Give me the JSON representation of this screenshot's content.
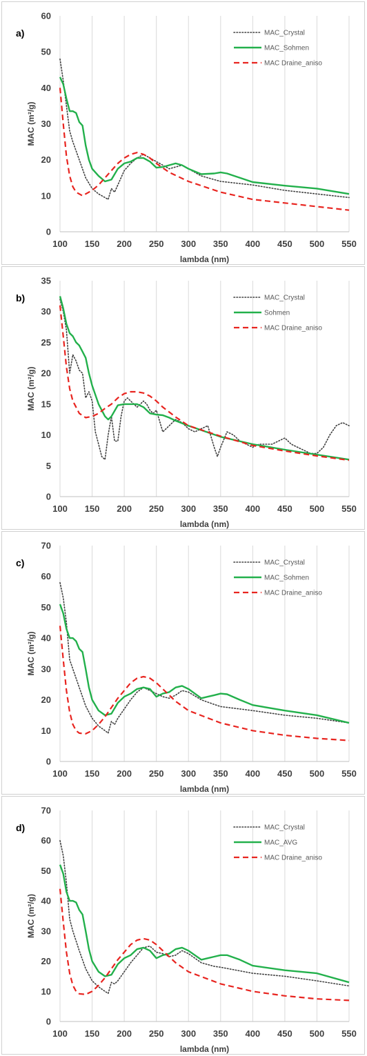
{
  "colors": {
    "crystal": "#3f3f3f",
    "green": "#22b04b",
    "red": "#e8241f",
    "grid": "#d9d9d9"
  },
  "chart_data": [
    {
      "type": "line",
      "panel_label": "a)",
      "xlabel": "lambda (nm)",
      "ylabel": "MAC (m²/g)",
      "xlim": [
        100,
        550
      ],
      "ylim": [
        0,
        60
      ],
      "xticks": [
        100,
        150,
        200,
        250,
        300,
        350,
        400,
        450,
        500,
        550
      ],
      "yticks": [
        0,
        10,
        20,
        30,
        40,
        50,
        60
      ],
      "grid": "vertical",
      "legend_position": "top-right",
      "series": [
        {
          "name": "MAC_Crystal",
          "style": "dotted",
          "x": [
            100,
            105,
            110,
            115,
            120,
            130,
            140,
            150,
            160,
            170,
            175,
            180,
            185,
            190,
            200,
            210,
            220,
            230,
            240,
            250,
            260,
            270,
            280,
            290,
            300,
            320,
            350,
            400,
            450,
            500,
            550
          ],
          "y": [
            48,
            42,
            35,
            28,
            25,
            20,
            15,
            12,
            10.5,
            9.5,
            9.0,
            12,
            11,
            13,
            17,
            19,
            20.5,
            21.5,
            20.5,
            19.5,
            18.5,
            17.5,
            18,
            18.5,
            17.5,
            15.5,
            14,
            13,
            11.5,
            10.5,
            9.5
          ]
        },
        {
          "name": "MAC_Sohmen",
          "style": "solid",
          "x": [
            100,
            105,
            110,
            115,
            120,
            125,
            130,
            135,
            140,
            145,
            150,
            160,
            170,
            180,
            190,
            200,
            210,
            220,
            230,
            240,
            250,
            260,
            270,
            280,
            290,
            300,
            320,
            340,
            350,
            360,
            380,
            400,
            450,
            500,
            550
          ],
          "y": [
            43,
            41,
            37,
            33.5,
            33.5,
            33,
            30.5,
            29.5,
            24,
            20,
            17.5,
            15.5,
            14.0,
            14.5,
            17.5,
            19,
            19.5,
            20.5,
            20.5,
            19.5,
            17.8,
            18,
            18.5,
            19,
            18.5,
            17.5,
            16,
            16.2,
            16.5,
            16.2,
            15,
            13.8,
            12.8,
            12,
            10.5
          ]
        },
        {
          "name": "MAC Draine_aniso",
          "style": "dashed",
          "x": [
            100,
            105,
            110,
            115,
            120,
            125,
            130,
            135,
            140,
            150,
            160,
            170,
            180,
            190,
            200,
            210,
            220,
            230,
            240,
            250,
            270,
            300,
            350,
            400,
            450,
            500,
            550
          ],
          "y": [
            40,
            30,
            21,
            15.5,
            12.5,
            11,
            10.5,
            10,
            10.5,
            11.5,
            13,
            15,
            17,
            19,
            20.5,
            21.5,
            22,
            21.5,
            20.5,
            19,
            16.5,
            14,
            11,
            9,
            8,
            7,
            6
          ]
        }
      ]
    },
    {
      "type": "line",
      "panel_label": "b)",
      "xlabel": "lambda (nm)",
      "ylabel": "MAC (m²/g)",
      "xlim": [
        100,
        550
      ],
      "ylim": [
        0,
        35
      ],
      "xticks": [
        100,
        150,
        200,
        250,
        300,
        350,
        400,
        450,
        500,
        550
      ],
      "yticks": [
        0,
        5,
        10,
        15,
        20,
        25,
        30,
        35
      ],
      "grid": "vertical",
      "legend_position": "top-right",
      "series": [
        {
          "name": "MAC_Crystal",
          "style": "dotted",
          "x": [
            100,
            105,
            110,
            115,
            120,
            125,
            130,
            135,
            140,
            145,
            150,
            155,
            160,
            165,
            170,
            175,
            180,
            185,
            190,
            195,
            200,
            205,
            210,
            215,
            220,
            225,
            230,
            235,
            240,
            245,
            250,
            260,
            270,
            280,
            290,
            300,
            310,
            320,
            330,
            340,
            345,
            350,
            360,
            370,
            380,
            390,
            400,
            410,
            420,
            430,
            440,
            450,
            460,
            470,
            480,
            490,
            500,
            510,
            520,
            530,
            540,
            550
          ],
          "y": [
            32,
            30,
            27,
            20,
            23,
            22,
            20.5,
            20,
            16,
            17,
            15.5,
            10.5,
            8.5,
            6.5,
            6,
            10,
            13,
            9,
            9,
            13,
            15.5,
            16,
            15.5,
            15,
            14.5,
            15,
            15.5,
            15,
            14,
            13.5,
            14,
            10.5,
            11.5,
            12.5,
            12,
            11,
            10.5,
            11,
            11.5,
            8,
            6.5,
            8,
            10.5,
            10,
            9,
            8.5,
            8,
            8.5,
            8.5,
            8.5,
            9,
            9.5,
            8.5,
            8,
            7.5,
            7,
            7,
            8,
            10,
            11.5,
            12,
            11.5
          ]
        },
        {
          "name": "Sohmen",
          "style": "solid",
          "x": [
            100,
            105,
            110,
            115,
            120,
            125,
            130,
            135,
            140,
            145,
            150,
            160,
            170,
            175,
            180,
            190,
            200,
            210,
            220,
            230,
            240,
            250,
            260,
            270,
            280,
            300,
            350,
            400,
            450,
            500,
            550
          ],
          "y": [
            32.5,
            30.5,
            28,
            26.5,
            26,
            25,
            24.5,
            23.5,
            22.5,
            20,
            18,
            15,
            13,
            12.5,
            13,
            14.8,
            15,
            15,
            15,
            14.5,
            13.5,
            13.3,
            13.2,
            12.8,
            12.3,
            11.5,
            9.7,
            8.5,
            7.6,
            6.8,
            6
          ]
        },
        {
          "name": "MAC Draine_aniso",
          "style": "dashed",
          "x": [
            100,
            105,
            110,
            115,
            120,
            125,
            130,
            140,
            150,
            160,
            170,
            180,
            190,
            200,
            210,
            220,
            230,
            240,
            250,
            260,
            280,
            300,
            350,
            400,
            450,
            500,
            550
          ],
          "y": [
            31,
            26,
            21,
            17.5,
            15.5,
            14.5,
            13.5,
            12.8,
            13,
            13.5,
            14.3,
            15,
            16,
            16.7,
            17,
            17,
            16.8,
            16.3,
            15.5,
            14.5,
            12.9,
            11.5,
            9.8,
            8.3,
            7.4,
            6.6,
            5.9
          ]
        }
      ]
    },
    {
      "type": "line",
      "panel_label": "c)",
      "xlabel": "lambda (nm)",
      "ylabel": "MAC (m²/g)",
      "xlim": [
        100,
        550
      ],
      "ylim": [
        0,
        70
      ],
      "xticks": [
        100,
        150,
        200,
        250,
        300,
        350,
        400,
        450,
        500,
        550
      ],
      "yticks": [
        0,
        10,
        20,
        30,
        40,
        50,
        60,
        70
      ],
      "grid": "vertical",
      "legend_position": "top-right",
      "series": [
        {
          "name": "MAC_Crystal",
          "style": "dotted",
          "x": [
            100,
            105,
            110,
            115,
            120,
            130,
            140,
            150,
            160,
            170,
            175,
            180,
            185,
            190,
            200,
            210,
            220,
            230,
            240,
            250,
            260,
            270,
            280,
            290,
            300,
            320,
            340,
            350,
            400,
            450,
            500,
            550
          ],
          "y": [
            58,
            53,
            45,
            33,
            30,
            24,
            18,
            14,
            11.5,
            10,
            9.2,
            13,
            12,
            14,
            17,
            20,
            22.5,
            24,
            23,
            22,
            21,
            20.5,
            21.5,
            23,
            22.5,
            20,
            18.5,
            17.8,
            16.5,
            15,
            14,
            12.5
          ]
        },
        {
          "name": "MAC_Sohmen",
          "style": "solid",
          "x": [
            100,
            105,
            110,
            115,
            120,
            125,
            130,
            135,
            140,
            145,
            150,
            160,
            170,
            180,
            190,
            200,
            210,
            220,
            230,
            240,
            250,
            260,
            270,
            280,
            290,
            300,
            320,
            330,
            340,
            350,
            360,
            380,
            400,
            450,
            500,
            550
          ],
          "y": [
            51,
            48,
            43,
            40,
            40,
            39,
            36.5,
            35.5,
            30,
            24,
            20,
            16.5,
            15,
            15.5,
            19,
            21,
            22,
            23.5,
            24,
            23.5,
            21,
            22,
            22.5,
            24,
            24.5,
            23.5,
            20.5,
            21,
            21.5,
            22,
            21.8,
            20,
            18.3,
            16.5,
            15,
            12.5
          ]
        },
        {
          "name": "MAC Draine_aniso",
          "style": "dashed",
          "x": [
            100,
            105,
            110,
            115,
            120,
            125,
            130,
            140,
            150,
            160,
            170,
            180,
            190,
            200,
            210,
            220,
            230,
            240,
            250,
            260,
            280,
            300,
            350,
            400,
            450,
            500,
            550
          ],
          "y": [
            44,
            33,
            23,
            16,
            12,
            10,
            9.2,
            9,
            10,
            12,
            14.5,
            17.5,
            20.5,
            23,
            25.5,
            27,
            27.5,
            27,
            25.5,
            23.5,
            19.5,
            16.5,
            12.5,
            10,
            8.5,
            7.5,
            6.8
          ]
        }
      ]
    },
    {
      "type": "line",
      "panel_label": "d)",
      "xlabel": "lambda (nm)",
      "ylabel": "MAC (m²/g)",
      "xlim": [
        100,
        550
      ],
      "ylim": [
        0,
        70
      ],
      "xticks": [
        100,
        150,
        200,
        250,
        300,
        350,
        400,
        450,
        500,
        550
      ],
      "yticks": [
        0,
        10,
        20,
        30,
        40,
        50,
        60,
        70
      ],
      "grid": "vertical",
      "legend_position": "top-right",
      "series": [
        {
          "name": "MAC_Crystal",
          "style": "dotted",
          "x": [
            100,
            105,
            110,
            115,
            120,
            130,
            140,
            150,
            160,
            170,
            175,
            180,
            185,
            190,
            200,
            210,
            220,
            230,
            240,
            250,
            260,
            270,
            280,
            290,
            300,
            320,
            340,
            350,
            400,
            450,
            500,
            550
          ],
          "y": [
            60,
            55,
            46,
            34,
            30,
            23.5,
            17.5,
            13.5,
            11.5,
            10,
            9.3,
            13,
            12.5,
            13.5,
            16.5,
            19.5,
            22,
            24.5,
            25,
            23,
            22.5,
            21.5,
            22,
            23.5,
            22.5,
            19.5,
            18.3,
            18,
            16,
            15,
            13.5,
            11.8
          ]
        },
        {
          "name": "MAC_AVG",
          "style": "solid",
          "x": [
            100,
            105,
            110,
            115,
            120,
            125,
            130,
            135,
            140,
            145,
            150,
            160,
            170,
            180,
            190,
            200,
            210,
            220,
            230,
            240,
            250,
            260,
            270,
            280,
            290,
            300,
            320,
            330,
            340,
            350,
            360,
            380,
            400,
            450,
            500,
            550
          ],
          "y": [
            52,
            49,
            43,
            40,
            40,
            39.5,
            37,
            35.5,
            30,
            24,
            20,
            16.5,
            15,
            15.5,
            19,
            21,
            22,
            24,
            24.5,
            23.5,
            21,
            22,
            22.5,
            24,
            24.5,
            23.5,
            20.5,
            21,
            21.5,
            22,
            22,
            20.5,
            18.5,
            17,
            16,
            13
          ]
        },
        {
          "name": "MAC Draine_aniso",
          "style": "dashed",
          "x": [
            100,
            105,
            110,
            115,
            120,
            125,
            130,
            140,
            150,
            160,
            170,
            180,
            190,
            200,
            210,
            220,
            230,
            240,
            250,
            260,
            280,
            300,
            350,
            400,
            450,
            500,
            550
          ],
          "y": [
            44,
            33,
            23,
            16,
            12,
            10,
            9.2,
            9,
            10,
            12,
            14.5,
            17.5,
            20.5,
            23,
            25.5,
            27,
            27.5,
            27,
            25.5,
            23.5,
            19.5,
            16.5,
            12.5,
            10,
            8.5,
            7.5,
            7
          ]
        }
      ]
    }
  ]
}
